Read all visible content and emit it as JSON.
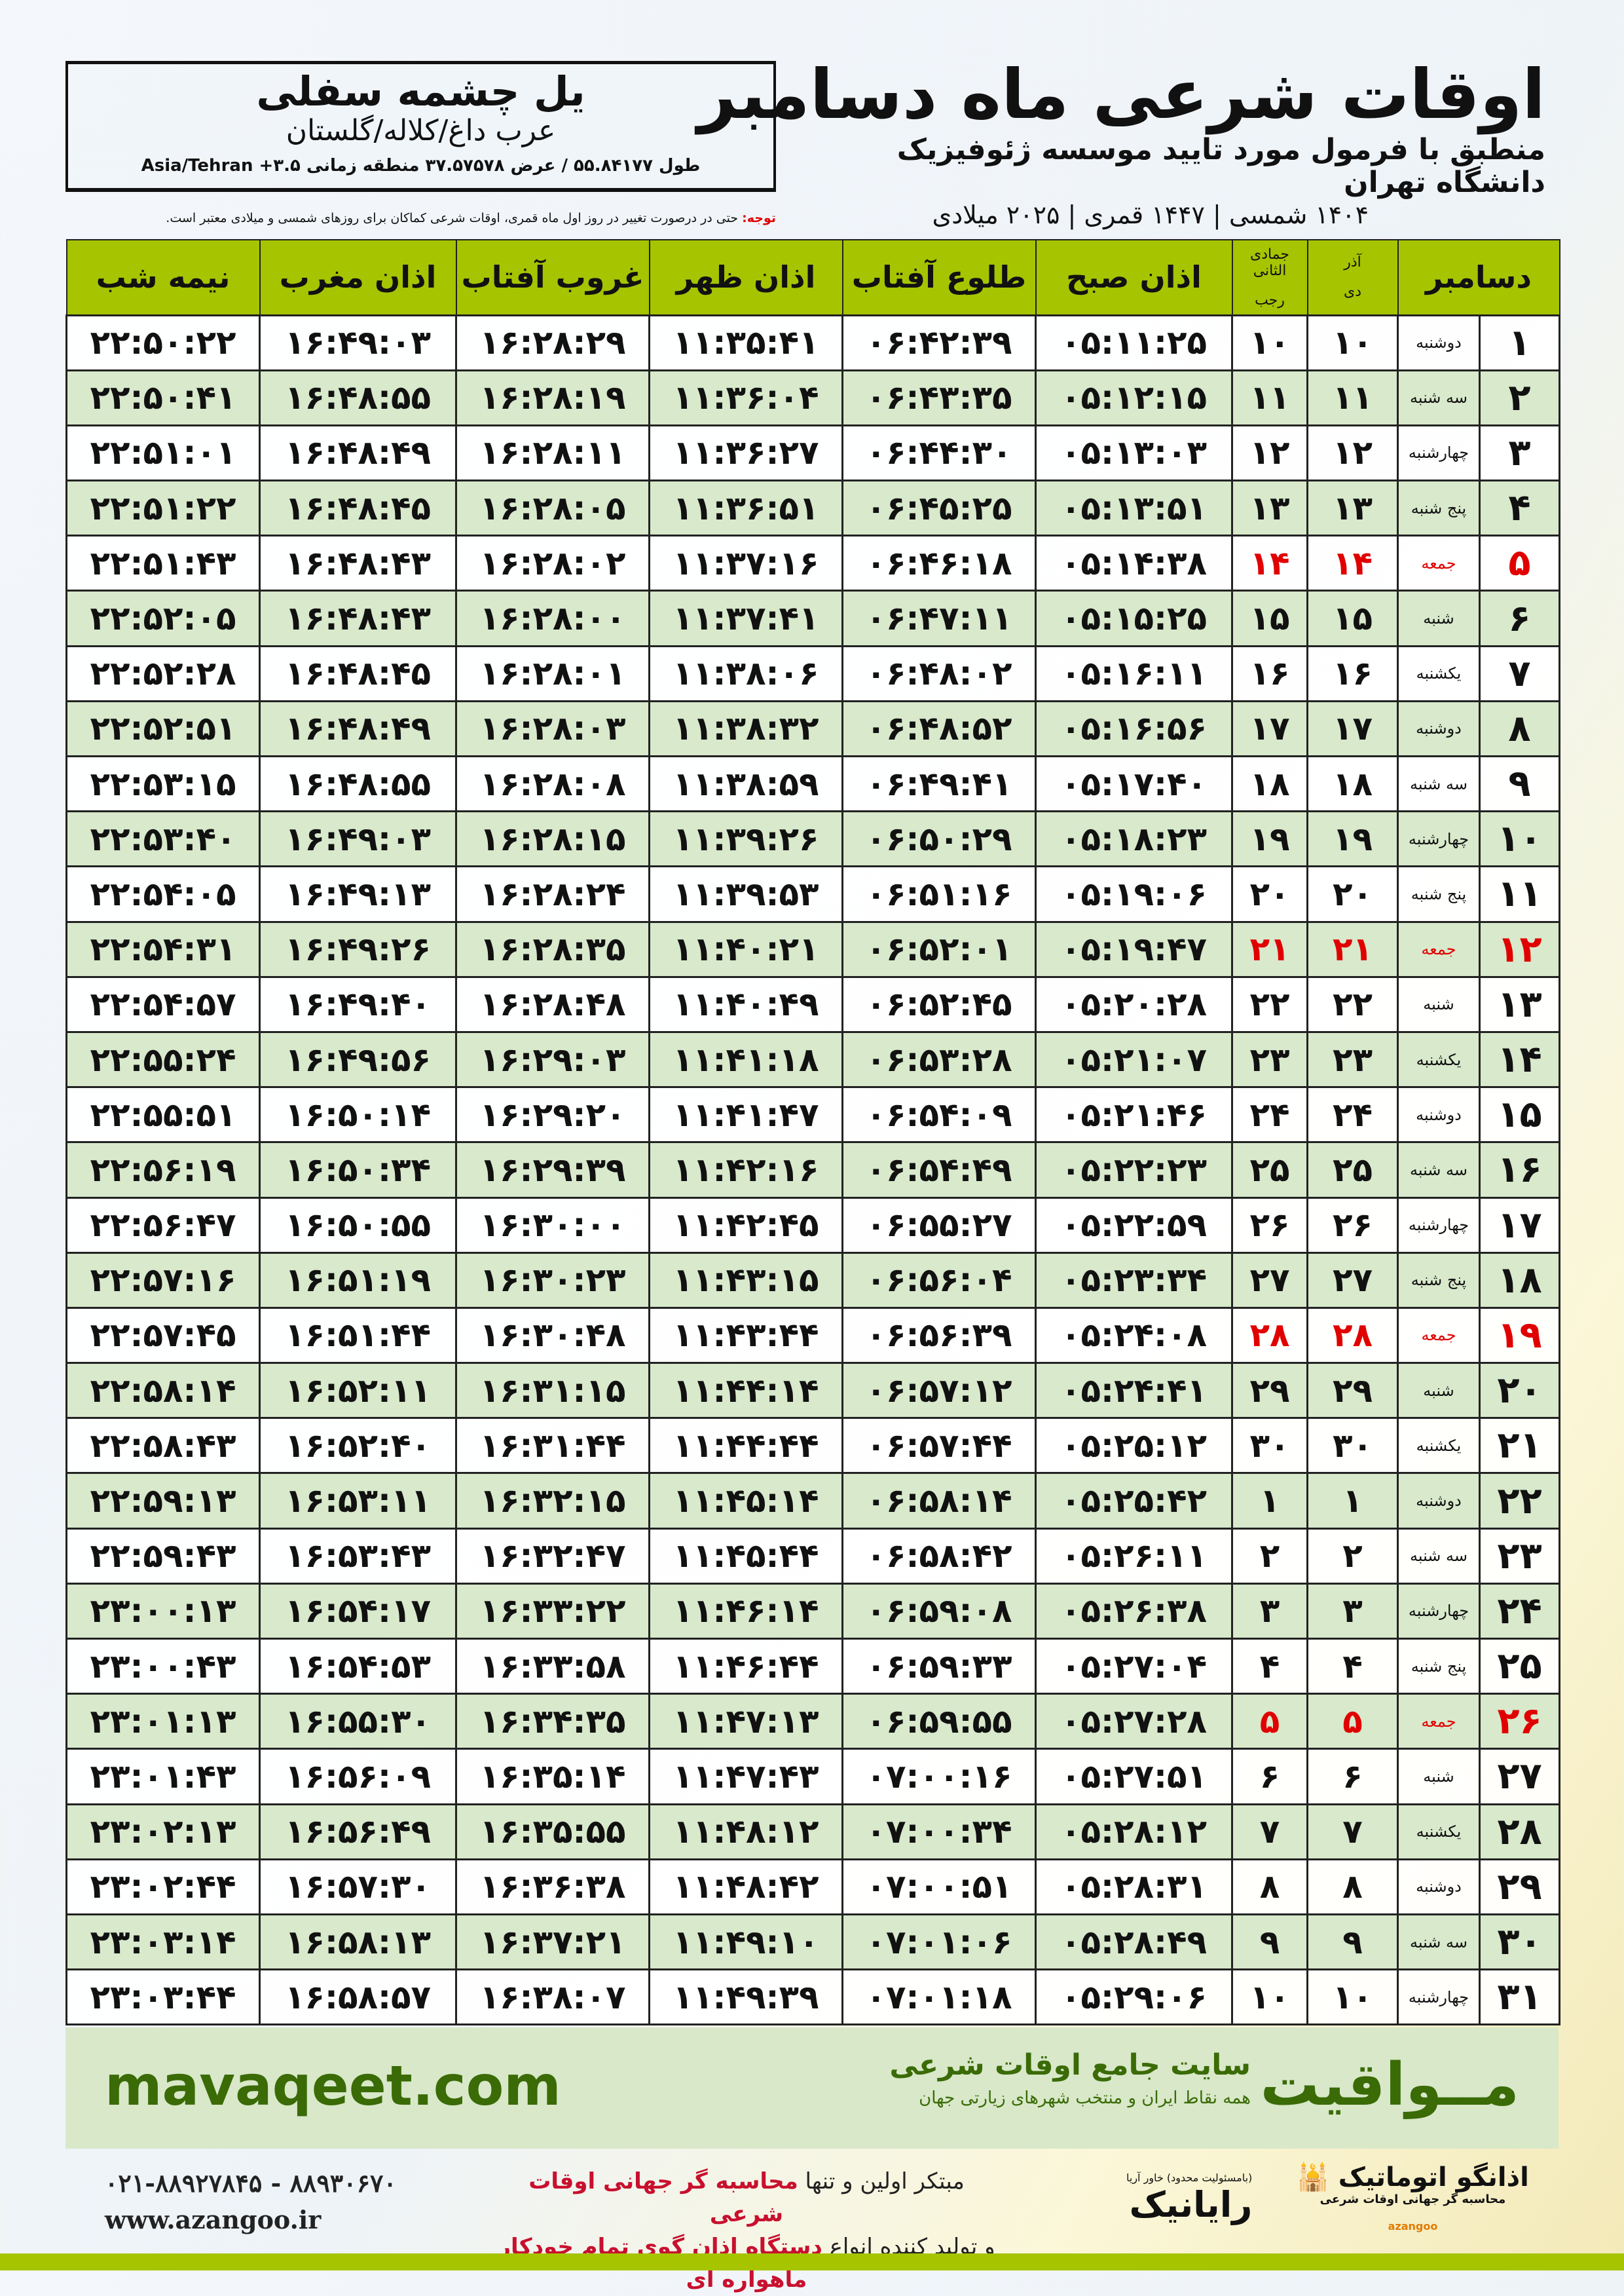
{
  "header": {
    "title": "اوقات شرعی ماه دسامبر",
    "subtitle": "منطبق با فرمول مورد تایید موسسه ژئوفیزیک دانشگاه تهران",
    "years": "۱۴۰۴ شمسی | ۱۴۴۷ قمری | ۲۰۲۵ میلادی",
    "location_name": "یل چشمه سفلی",
    "location_region": "عرب داغ/کلاله/گلستان",
    "coordinates": "طول ۵۵.۸۴۱۷۷ / عرض ۳۷.۵۷۵۷۸ منطقه زمانی ۳.۵+ Asia/Tehran",
    "note_label": "توجه:",
    "note": "حتی در درصورت تغییر در روز اول ماه قمری، اوقات شرعی کماکان برای روزهای شمسی و میلادی معتبر است."
  },
  "table": {
    "columns": {
      "month": "دسامبر",
      "shamsi_top": "آذر",
      "hijri_top": "جمادی الثانی",
      "shamsi": "دی",
      "hijri": "رجب",
      "fajr": "اذان صبح",
      "sunrise": "طلوع آفتاب",
      "dhuhr": "اذان ظهر",
      "sunset": "غروب آفتاب",
      "maghrib": "اذان مغرب",
      "midnight": "نیمه شب"
    },
    "rows": [
      [
        "۱",
        "دوشنبه",
        "۱۰",
        "۱۰",
        "۰۵:۱۱:۲۵",
        "۰۶:۴۲:۳۹",
        "۱۱:۳۵:۴۱",
        "۱۶:۲۸:۲۹",
        "۱۶:۴۹:۰۳",
        "۲۲:۵۰:۲۲"
      ],
      [
        "۲",
        "سه شنبه",
        "۱۱",
        "۱۱",
        "۰۵:۱۲:۱۵",
        "۰۶:۴۳:۳۵",
        "۱۱:۳۶:۰۴",
        "۱۶:۲۸:۱۹",
        "۱۶:۴۸:۵۵",
        "۲۲:۵۰:۴۱"
      ],
      [
        "۳",
        "چهارشنبه",
        "۱۲",
        "۱۲",
        "۰۵:۱۳:۰۳",
        "۰۶:۴۴:۳۰",
        "۱۱:۳۶:۲۷",
        "۱۶:۲۸:۱۱",
        "۱۶:۴۸:۴۹",
        "۲۲:۵۱:۰۱"
      ],
      [
        "۴",
        "پنج شنبه",
        "۱۳",
        "۱۳",
        "۰۵:۱۳:۵۱",
        "۰۶:۴۵:۲۵",
        "۱۱:۳۶:۵۱",
        "۱۶:۲۸:۰۵",
        "۱۶:۴۸:۴۵",
        "۲۲:۵۱:۲۲"
      ],
      [
        "۵",
        "جمعه",
        "۱۴",
        "۱۴",
        "۰۵:۱۴:۳۸",
        "۰۶:۴۶:۱۸",
        "۱۱:۳۷:۱۶",
        "۱۶:۲۸:۰۲",
        "۱۶:۴۸:۴۳",
        "۲۲:۵۱:۴۳"
      ],
      [
        "۶",
        "شنبه",
        "۱۵",
        "۱۵",
        "۰۵:۱۵:۲۵",
        "۰۶:۴۷:۱۱",
        "۱۱:۳۷:۴۱",
        "۱۶:۲۸:۰۰",
        "۱۶:۴۸:۴۳",
        "۲۲:۵۲:۰۵"
      ],
      [
        "۷",
        "یکشنبه",
        "۱۶",
        "۱۶",
        "۰۵:۱۶:۱۱",
        "۰۶:۴۸:۰۲",
        "۱۱:۳۸:۰۶",
        "۱۶:۲۸:۰۱",
        "۱۶:۴۸:۴۵",
        "۲۲:۵۲:۲۸"
      ],
      [
        "۸",
        "دوشنبه",
        "۱۷",
        "۱۷",
        "۰۵:۱۶:۵۶",
        "۰۶:۴۸:۵۲",
        "۱۱:۳۸:۳۲",
        "۱۶:۲۸:۰۳",
        "۱۶:۴۸:۴۹",
        "۲۲:۵۲:۵۱"
      ],
      [
        "۹",
        "سه شنبه",
        "۱۸",
        "۱۸",
        "۰۵:۱۷:۴۰",
        "۰۶:۴۹:۴۱",
        "۱۱:۳۸:۵۹",
        "۱۶:۲۸:۰۸",
        "۱۶:۴۸:۵۵",
        "۲۲:۵۳:۱۵"
      ],
      [
        "۱۰",
        "چهارشنبه",
        "۱۹",
        "۱۹",
        "۰۵:۱۸:۲۳",
        "۰۶:۵۰:۲۹",
        "۱۱:۳۹:۲۶",
        "۱۶:۲۸:۱۵",
        "۱۶:۴۹:۰۳",
        "۲۲:۵۳:۴۰"
      ],
      [
        "۱۱",
        "پنج شنبه",
        "۲۰",
        "۲۰",
        "۰۵:۱۹:۰۶",
        "۰۶:۵۱:۱۶",
        "۱۱:۳۹:۵۳",
        "۱۶:۲۸:۲۴",
        "۱۶:۴۹:۱۳",
        "۲۲:۵۴:۰۵"
      ],
      [
        "۱۲",
        "جمعه",
        "۲۱",
        "۲۱",
        "۰۵:۱۹:۴۷",
        "۰۶:۵۲:۰۱",
        "۱۱:۴۰:۲۱",
        "۱۶:۲۸:۳۵",
        "۱۶:۴۹:۲۶",
        "۲۲:۵۴:۳۱"
      ],
      [
        "۱۳",
        "شنبه",
        "۲۲",
        "۲۲",
        "۰۵:۲۰:۲۸",
        "۰۶:۵۲:۴۵",
        "۱۱:۴۰:۴۹",
        "۱۶:۲۸:۴۸",
        "۱۶:۴۹:۴۰",
        "۲۲:۵۴:۵۷"
      ],
      [
        "۱۴",
        "یکشنبه",
        "۲۳",
        "۲۳",
        "۰۵:۲۱:۰۷",
        "۰۶:۵۳:۲۸",
        "۱۱:۴۱:۱۸",
        "۱۶:۲۹:۰۳",
        "۱۶:۴۹:۵۶",
        "۲۲:۵۵:۲۴"
      ],
      [
        "۱۵",
        "دوشنبه",
        "۲۴",
        "۲۴",
        "۰۵:۲۱:۴۶",
        "۰۶:۵۴:۰۹",
        "۱۱:۴۱:۴۷",
        "۱۶:۲۹:۲۰",
        "۱۶:۵۰:۱۴",
        "۲۲:۵۵:۵۱"
      ],
      [
        "۱۶",
        "سه شنبه",
        "۲۵",
        "۲۵",
        "۰۵:۲۲:۲۳",
        "۰۶:۵۴:۴۹",
        "۱۱:۴۲:۱۶",
        "۱۶:۲۹:۳۹",
        "۱۶:۵۰:۳۴",
        "۲۲:۵۶:۱۹"
      ],
      [
        "۱۷",
        "چهارشنبه",
        "۲۶",
        "۲۶",
        "۰۵:۲۲:۵۹",
        "۰۶:۵۵:۲۷",
        "۱۱:۴۲:۴۵",
        "۱۶:۳۰:۰۰",
        "۱۶:۵۰:۵۵",
        "۲۲:۵۶:۴۷"
      ],
      [
        "۱۸",
        "پنج شنبه",
        "۲۷",
        "۲۷",
        "۰۵:۲۳:۳۴",
        "۰۶:۵۶:۰۴",
        "۱۱:۴۳:۱۵",
        "۱۶:۳۰:۲۳",
        "۱۶:۵۱:۱۹",
        "۲۲:۵۷:۱۶"
      ],
      [
        "۱۹",
        "جمعه",
        "۲۸",
        "۲۸",
        "۰۵:۲۴:۰۸",
        "۰۶:۵۶:۳۹",
        "۱۱:۴۳:۴۴",
        "۱۶:۳۰:۴۸",
        "۱۶:۵۱:۴۴",
        "۲۲:۵۷:۴۵"
      ],
      [
        "۲۰",
        "شنبه",
        "۲۹",
        "۲۹",
        "۰۵:۲۴:۴۱",
        "۰۶:۵۷:۱۲",
        "۱۱:۴۴:۱۴",
        "۱۶:۳۱:۱۵",
        "۱۶:۵۲:۱۱",
        "۲۲:۵۸:۱۴"
      ],
      [
        "۲۱",
        "یکشنبه",
        "۳۰",
        "۳۰",
        "۰۵:۲۵:۱۲",
        "۰۶:۵۷:۴۴",
        "۱۱:۴۴:۴۴",
        "۱۶:۳۱:۴۴",
        "۱۶:۵۲:۴۰",
        "۲۲:۵۸:۴۳"
      ],
      [
        "۲۲",
        "دوشنبه",
        "۱",
        "۱",
        "۰۵:۲۵:۴۲",
        "۰۶:۵۸:۱۴",
        "۱۱:۴۵:۱۴",
        "۱۶:۳۲:۱۵",
        "۱۶:۵۳:۱۱",
        "۲۲:۵۹:۱۳"
      ],
      [
        "۲۳",
        "سه شنبه",
        "۲",
        "۲",
        "۰۵:۲۶:۱۱",
        "۰۶:۵۸:۴۲",
        "۱۱:۴۵:۴۴",
        "۱۶:۳۲:۴۷",
        "۱۶:۵۳:۴۳",
        "۲۲:۵۹:۴۳"
      ],
      [
        "۲۴",
        "چهارشنبه",
        "۳",
        "۳",
        "۰۵:۲۶:۳۸",
        "۰۶:۵۹:۰۸",
        "۱۱:۴۶:۱۴",
        "۱۶:۳۳:۲۲",
        "۱۶:۵۴:۱۷",
        "۲۳:۰۰:۱۳"
      ],
      [
        "۲۵",
        "پنج شنبه",
        "۴",
        "۴",
        "۰۵:۲۷:۰۴",
        "۰۶:۵۹:۳۳",
        "۱۱:۴۶:۴۴",
        "۱۶:۳۳:۵۸",
        "۱۶:۵۴:۵۳",
        "۲۳:۰۰:۴۳"
      ],
      [
        "۲۶",
        "جمعه",
        "۵",
        "۵",
        "۰۵:۲۷:۲۸",
        "۰۶:۵۹:۵۵",
        "۱۱:۴۷:۱۳",
        "۱۶:۳۴:۳۵",
        "۱۶:۵۵:۳۰",
        "۲۳:۰۱:۱۳"
      ],
      [
        "۲۷",
        "شنبه",
        "۶",
        "۶",
        "۰۵:۲۷:۵۱",
        "۰۷:۰۰:۱۶",
        "۱۱:۴۷:۴۳",
        "۱۶:۳۵:۱۴",
        "۱۶:۵۶:۰۹",
        "۲۳:۰۱:۴۳"
      ],
      [
        "۲۸",
        "یکشنبه",
        "۷",
        "۷",
        "۰۵:۲۸:۱۲",
        "۰۷:۰۰:۳۴",
        "۱۱:۴۸:۱۲",
        "۱۶:۳۵:۵۵",
        "۱۶:۵۶:۴۹",
        "۲۳:۰۲:۱۳"
      ],
      [
        "۲۹",
        "دوشنبه",
        "۸",
        "۸",
        "۰۵:۲۸:۳۱",
        "۰۷:۰۰:۵۱",
        "۱۱:۴۸:۴۲",
        "۱۶:۳۶:۳۸",
        "۱۶:۵۷:۳۰",
        "۲۳:۰۲:۴۴"
      ],
      [
        "۳۰",
        "سه شنبه",
        "۹",
        "۹",
        "۰۵:۲۸:۴۹",
        "۰۷:۰۱:۰۶",
        "۱۱:۴۹:۱۰",
        "۱۶:۳۷:۲۱",
        "۱۶:۵۸:۱۳",
        "۲۳:۰۳:۱۴"
      ],
      [
        "۳۱",
        "چهارشنبه",
        "۱۰",
        "۱۰",
        "۰۵:۲۹:۰۶",
        "۰۷:۰۱:۱۸",
        "۱۱:۴۹:۳۹",
        "۱۶:۳۸:۰۷",
        "۱۶:۵۸:۵۷",
        "۲۳:۰۳:۴۴"
      ]
    ],
    "friday_label": "جمعه"
  },
  "footer": {
    "site_url": "mavaqeet.com",
    "site_logo": "مــواقیت",
    "site_desc": "سایت جامع اوقات شرعی",
    "site_sub": "همه نقاط ایران و منتخب شهرهای زیارتی جهان",
    "phones": "۰۲۱-۸۸۹۲۷۸۴۵ - ۸۸۹۳۰۶۷۰",
    "web": "www.azangoo.ir",
    "slogan_1a": "مبتکر اولین و تنها ",
    "slogan_1b": "محاسبه گر جهانی اوقات شرعی",
    "slogan_2a": "و تولید کننده انواع ",
    "slogan_2b": "دستگاه اذان گوی تمام خودکار ماهواره ای",
    "rayanik": "رایانیک",
    "rayanik_sub": "(بامسئولیت محدود) خاور آریا",
    "azangoo": "اذانگو اتوماتیک",
    "azangoo_sub": "محاسبه گر جهانی اوقات شرعی",
    "azangoo_en": "azangoo"
  },
  "colors": {
    "header_green": "#a6c400",
    "row_alt": "#d8e9cc",
    "friday_red": "#e00000",
    "brand_green": "#3a6b06"
  }
}
